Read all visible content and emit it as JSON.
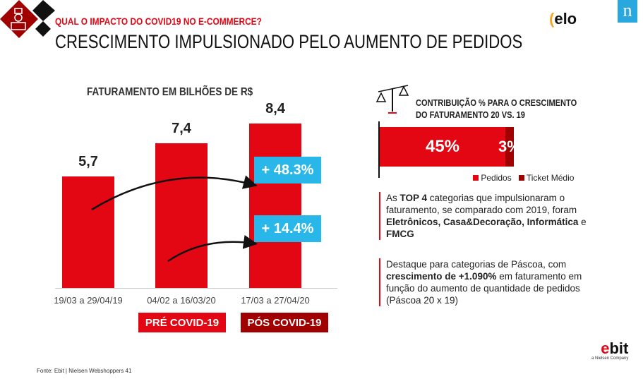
{
  "header": {
    "subtitle": "QUAL O IMPACTO DO COVID19 NO E-COMMERCE?",
    "title": "CRESCIMENTO IMPULSIONADO PELO AUMENTO DE PEDIDOS",
    "logo_elo": "elo",
    "logo_nielsen": "n"
  },
  "chart_data": {
    "type": "bar",
    "title": "FATURAMENTO EM BILHÕES DE R$",
    "categories": [
      "19/03 a 29/04/19",
      "04/02 a 16/03/20",
      "17/03 a 27/04/20"
    ],
    "values": [
      5.7,
      7.4,
      8.4
    ],
    "value_labels": [
      "5,7",
      "7,4",
      "8,4"
    ],
    "ylim": [
      0,
      8.4
    ],
    "bar_color": "#e30613",
    "annotations": [
      "+ 48.3%",
      "+ 14.4%"
    ],
    "period_badges": [
      "PRÉ COVID-19",
      "PÓS COVID-19"
    ]
  },
  "contrib": {
    "title_line1": "CONTRIBUIÇÃO % PARA O CRESCIMENTO",
    "title_line2": "DO FATURAMENTO 20 VS. 19",
    "pedidos_label": "45%",
    "ticket_label": "3%",
    "pedidos": 45,
    "ticket": 3,
    "legend": [
      "Pedidos",
      "Ticket Médio"
    ],
    "colors": {
      "pedidos": "#e30613",
      "ticket": "#a00000"
    }
  },
  "text1": {
    "a": "As ",
    "b": "TOP 4",
    "c": " categorias que impulsionaram o faturamento, se comparado com 2019, foram ",
    "d": "Eletrônicos, Casa&Decoração, Informática",
    "e": " e ",
    "f": "FMCG"
  },
  "text2": {
    "a": "Destaque para categorias de Páscoa, com ",
    "b": "crescimento de +1.090%",
    "c": " em faturamento em função do aumento de quantidade de pedidos (Páscoa 20 x 19)"
  },
  "footer": {
    "source": "Fonte: Ebit | Nielsen Webshoppers 41",
    "ebit": "ebit",
    "ebit_tag": "a Nielsen Company"
  }
}
